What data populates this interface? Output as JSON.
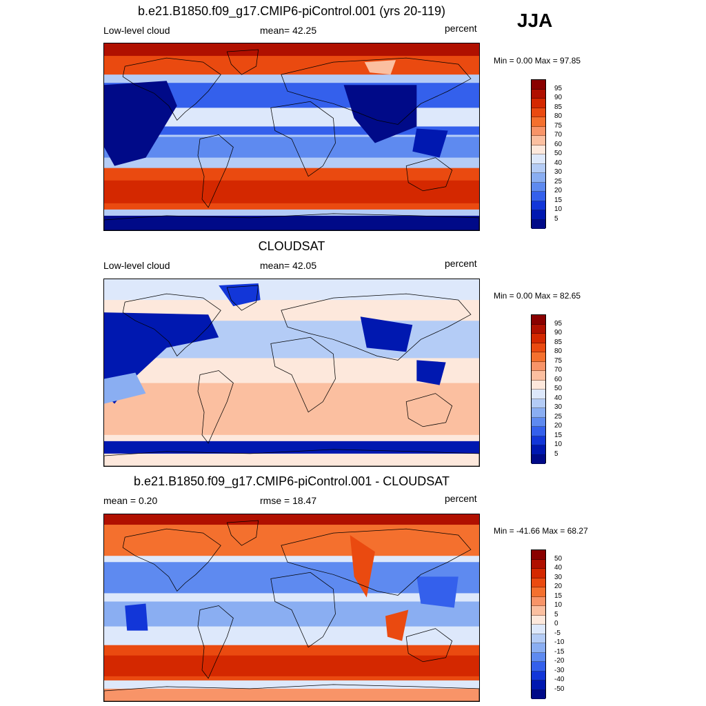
{
  "season": "JJA",
  "panels": [
    {
      "title": "b.e21.B1850.f09_g17.CMIP6-piControl.001 (yrs 20-119)",
      "left_label": "Low-level cloud",
      "center_label": "mean=  42.25",
      "right_label": "percent",
      "minmax": "Min =   0.00 Max =  97.85",
      "palette": "abs",
      "colorbar": {
        "labels": [
          "95",
          "90",
          "85",
          "80",
          "75",
          "70",
          "60",
          "50",
          "40",
          "30",
          "25",
          "20",
          "15",
          "10",
          "5"
        ],
        "colors": [
          "#8a0000",
          "#b01000",
          "#d42800",
          "#ea4a10",
          "#f4702e",
          "#f89468",
          "#fbbfa0",
          "#fde8dc",
          "#dde8fb",
          "#b4ccf6",
          "#8aaef2",
          "#5e8af0",
          "#3460ec",
          "#1236d8",
          "#0018b0",
          "#000a88"
        ]
      }
    },
    {
      "title": "CLOUDSAT",
      "left_label": "Low-level cloud",
      "center_label": "mean=  42.05",
      "right_label": "percent",
      "minmax": "Min =   0.00 Max =  82.65",
      "palette": "abs",
      "colorbar": {
        "labels": [
          "95",
          "90",
          "85",
          "80",
          "75",
          "70",
          "60",
          "50",
          "40",
          "30",
          "25",
          "20",
          "15",
          "10",
          "5"
        ],
        "colors": [
          "#8a0000",
          "#b01000",
          "#d42800",
          "#ea4a10",
          "#f4702e",
          "#f89468",
          "#fbbfa0",
          "#fde8dc",
          "#dde8fb",
          "#b4ccf6",
          "#8aaef2",
          "#5e8af0",
          "#3460ec",
          "#1236d8",
          "#0018b0",
          "#000a88"
        ]
      }
    },
    {
      "title": "b.e21.B1850.f09_g17.CMIP6-piControl.001 - CLOUDSAT",
      "left_label": "mean =   0.20",
      "center_label": "rmse =  18.47",
      "right_label": "percent",
      "minmax": "Min = -41.66 Max =  68.27",
      "palette": "diff",
      "colorbar": {
        "labels": [
          "50",
          "40",
          "30",
          "20",
          "15",
          "10",
          "5",
          "0",
          "-5",
          "-10",
          "-15",
          "-20",
          "-30",
          "-40",
          "-50"
        ],
        "colors": [
          "#8a0000",
          "#b01000",
          "#d42800",
          "#ea4a10",
          "#f4702e",
          "#f89468",
          "#fbbfa0",
          "#fde8dc",
          "#dde8fb",
          "#b4ccf6",
          "#8aaef2",
          "#5e8af0",
          "#3460ec",
          "#1236d8",
          "#0018b0",
          "#000a88"
        ]
      }
    }
  ]
}
